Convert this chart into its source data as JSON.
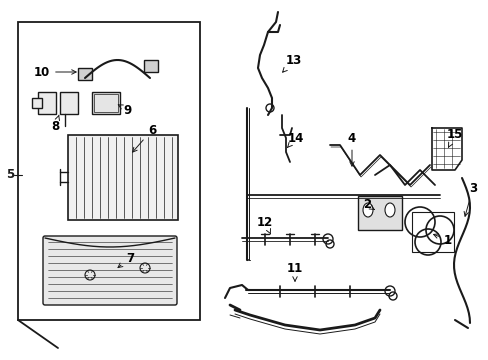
{
  "bg_color": "#ffffff",
  "line_color": "#1a1a1a",
  "label_color": "#000000",
  "font_size": 8.5,
  "fig_w": 4.89,
  "fig_h": 3.6,
  "dpi": 100
}
